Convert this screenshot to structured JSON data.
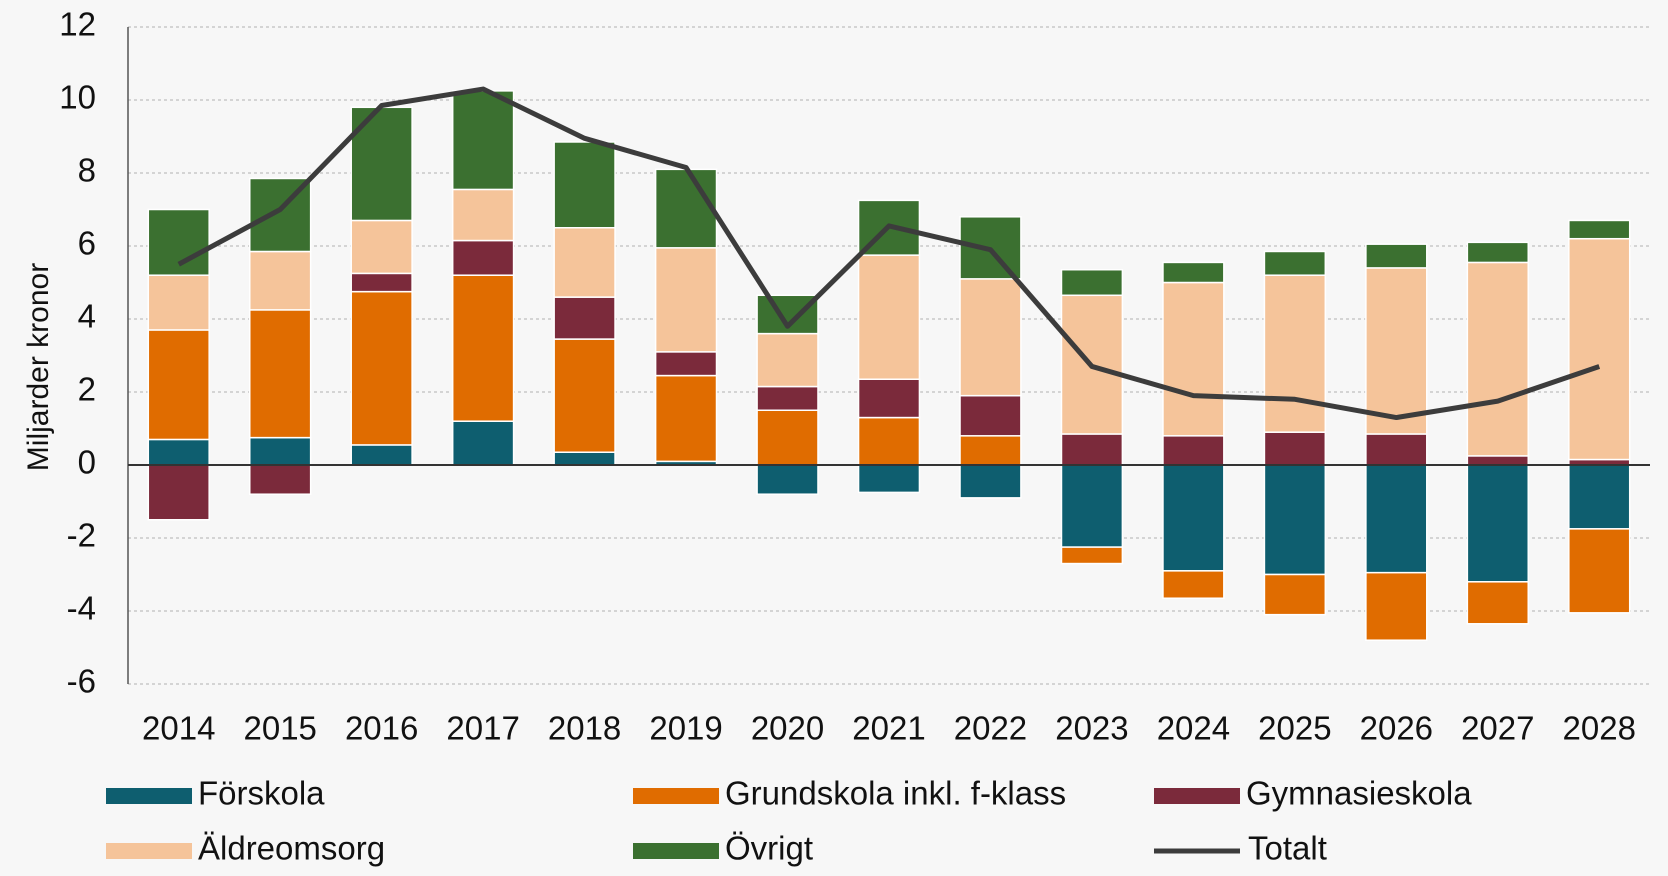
{
  "chart_data": {
    "type": "bar",
    "stacked": true,
    "y_label": "Miljarder kronor",
    "categories": [
      "2014",
      "2015",
      "2016",
      "2017",
      "2018",
      "2019",
      "2020",
      "2021",
      "2022",
      "2023",
      "2024",
      "2025",
      "2026",
      "2027",
      "2028"
    ],
    "series": [
      {
        "name": "Förskola",
        "color": "#0e5e6f",
        "values": [
          0.7,
          0.75,
          0.55,
          1.2,
          0.35,
          0.1,
          -0.8,
          -0.75,
          -0.9,
          -2.25,
          -2.9,
          -3.0,
          -2.95,
          -3.2,
          -1.75
        ]
      },
      {
        "name": "Grundskola inkl. f-klass",
        "color": "#e06c00",
        "values": [
          3.0,
          3.5,
          4.2,
          4.0,
          3.1,
          2.35,
          1.5,
          1.3,
          0.8,
          -0.45,
          -0.75,
          -1.1,
          -1.85,
          -1.15,
          -2.3
        ]
      },
      {
        "name": "Gymnasieskola",
        "color": "#7b2a3b",
        "values": [
          -1.5,
          -0.8,
          0.5,
          0.95,
          1.15,
          0.65,
          0.65,
          1.05,
          1.1,
          0.85,
          0.8,
          0.9,
          0.85,
          0.25,
          0.15
        ]
      },
      {
        "name": "Äldreomsorg",
        "color": "#f5c49a",
        "values": [
          1.5,
          1.6,
          1.45,
          1.4,
          1.9,
          2.85,
          1.45,
          3.4,
          3.2,
          3.8,
          4.2,
          4.3,
          4.55,
          5.3,
          6.05
        ]
      },
      {
        "name": "Övrigt",
        "color": "#3b7030",
        "values": [
          1.8,
          2.0,
          3.1,
          2.7,
          2.35,
          2.15,
          1.05,
          1.5,
          1.7,
          0.7,
          0.55,
          0.65,
          0.65,
          0.55,
          0.5
        ]
      },
      {
        "name": "Totalt",
        "type": "line",
        "color": "#3c3c3c",
        "values": [
          5.5,
          7.0,
          9.85,
          10.3,
          8.95,
          8.15,
          3.8,
          6.55,
          5.9,
          2.7,
          1.9,
          1.8,
          1.3,
          1.75,
          2.7
        ]
      }
    ],
    "ylim": [
      -6,
      12
    ],
    "yticks": [
      -6,
      -4,
      -2,
      0,
      2,
      4,
      6,
      8,
      10,
      12
    ],
    "grid": true
  }
}
